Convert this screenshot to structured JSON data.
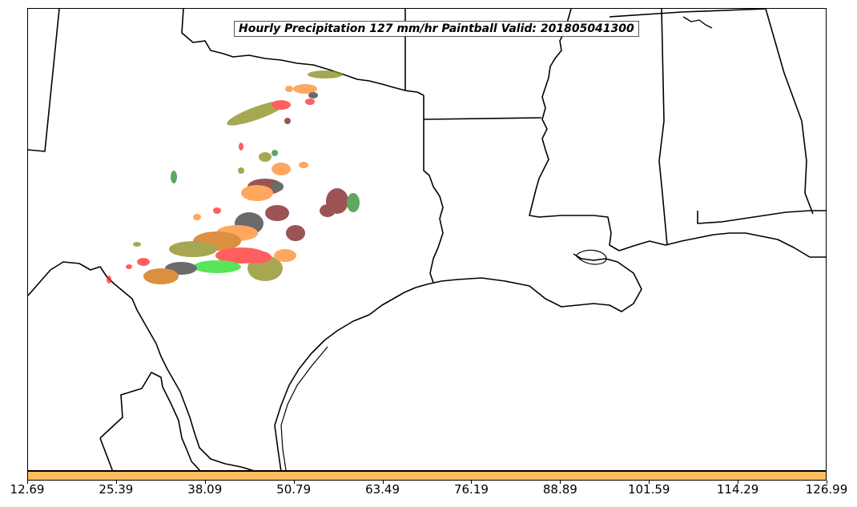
{
  "map": {
    "title": "Hourly Precipitation 127 mm/hr Paintball Valid: 201805041300"
  },
  "colorbar": {
    "color": "#fdbd5e",
    "ticks": [
      "12.69",
      "25.39",
      "38.09",
      "50.79",
      "63.49",
      "76.19",
      "88.89",
      "101.59",
      "114.29",
      "126.99"
    ]
  },
  "colors": {
    "paintball": [
      "#ff2a2a",
      "#ff8a2a",
      "#7a1a1a",
      "#3a3a3a",
      "#2a8a2a",
      "#8a8a1a",
      "#22dd22",
      "#d06a00"
    ]
  }
}
